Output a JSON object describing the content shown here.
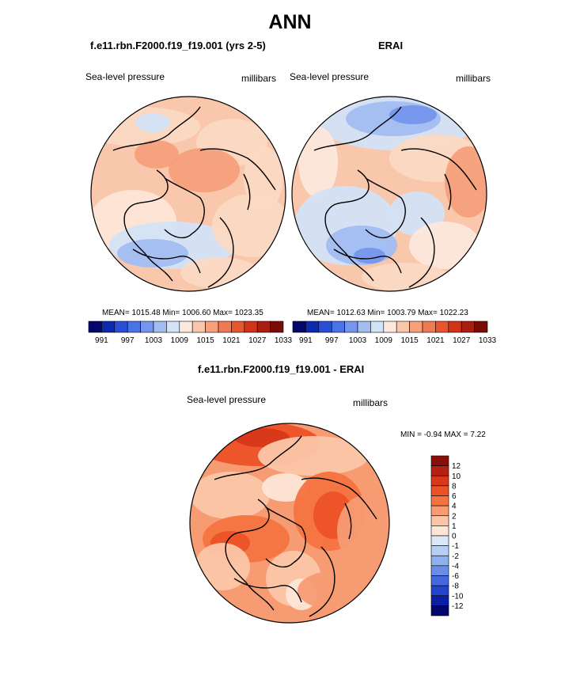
{
  "title": "ANN",
  "panels": [
    {
      "title": "f.e11.rbn.F2000.f19_f19.001 (yrs 2-5)",
      "left_label": "Sea-level pressure",
      "right_label": "millibars",
      "stats_text": "MEAN= 1015.48  Min= 1006.60  Max= 1023.35"
    },
    {
      "title": "ERAI",
      "left_label": "Sea-level pressure",
      "right_label": "millibars",
      "stats_text": "MEAN= 1012.63  Min= 1003.79  Max= 1022.23"
    },
    {
      "title": "f.e11.rbn.F2000.f19_f19.001 - ERAI",
      "left_label": "Sea-level pressure",
      "right_label": "millibars",
      "stats_text": "MIN =  -0.94 MAX =   7.22"
    }
  ],
  "chart_data": [
    {
      "type": "heatmap",
      "projection": "north polar stereographic",
      "title": "f.e11.rbn.F2000.f19_f19.001 (yrs 2-5)",
      "variable": "Sea-level pressure",
      "units": "millibars",
      "mean": 1015.48,
      "min": 1006.6,
      "max": 1023.35,
      "colorbar_orientation": "horizontal",
      "colorbar_tick_labels": [
        "991",
        "997",
        "1003",
        "1009",
        "1015",
        "1021",
        "1027",
        "1033"
      ],
      "colorbar_colors": [
        "#03066b",
        "#0c2ab0",
        "#2a4fd6",
        "#4a74e6",
        "#7596ec",
        "#a3bdf1",
        "#d3e3f7",
        "#fce8dc",
        "#f9c7ac",
        "#f5a07b",
        "#f07b52",
        "#e8552f",
        "#d1321a",
        "#aa1e12",
        "#7a0c08"
      ]
    },
    {
      "type": "heatmap",
      "projection": "north polar stereographic",
      "title": "ERAI",
      "variable": "Sea-level pressure",
      "units": "millibars",
      "mean": 1012.63,
      "min": 1003.79,
      "max": 1022.23,
      "colorbar_orientation": "horizontal",
      "colorbar_tick_labels": [
        "991",
        "997",
        "1003",
        "1009",
        "1015",
        "1021",
        "1027",
        "1033"
      ],
      "colorbar_colors": [
        "#03066b",
        "#0c2ab0",
        "#2a4fd6",
        "#4a74e6",
        "#7596ec",
        "#a3bdf1",
        "#d3e3f7",
        "#fce8dc",
        "#f9c7ac",
        "#f5a07b",
        "#f07b52",
        "#e8552f",
        "#d1321a",
        "#aa1e12",
        "#7a0c08"
      ]
    },
    {
      "type": "heatmap",
      "projection": "north polar stereographic",
      "title": "f.e11.rbn.F2000.f19_f19.001 - ERAI",
      "variable": "Sea-level pressure",
      "units": "millibars",
      "min": -0.94,
      "max": 7.22,
      "colorbar_orientation": "vertical",
      "colorbar_tick_labels": [
        "12",
        "10",
        "8",
        "6",
        "4",
        "2",
        "1",
        "0",
        "-1",
        "-2",
        "-4",
        "-6",
        "-8",
        "-10",
        "-12"
      ],
      "colorbar_colors": [
        "#8b0e08",
        "#b52010",
        "#d8371a",
        "#ec5226",
        "#f47340",
        "#f79b73",
        "#fbc6a8",
        "#fde6d6",
        "#dbe8f8",
        "#b7cff4",
        "#8fb0ee",
        "#6a8ee8",
        "#4368e0",
        "#2245cc",
        "#0a1fa3",
        "#03066b"
      ]
    }
  ]
}
